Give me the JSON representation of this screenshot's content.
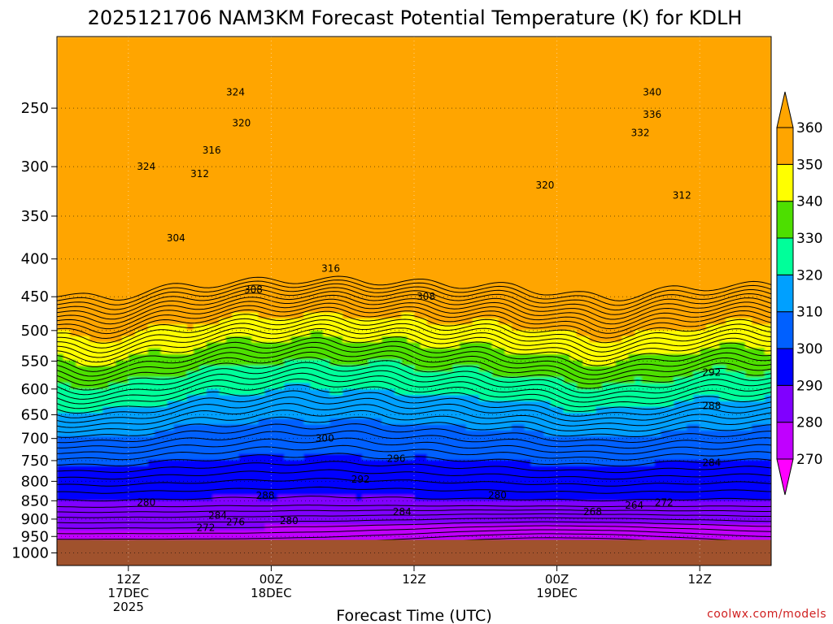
{
  "chart_data": {
    "type": "heatmap",
    "title": "2025121706 NAM3KM Forecast Potential Temperature (K) for KDLH",
    "xlabel": "Forecast Time (UTC)",
    "ylabel": "",
    "y_scale": "pressure (log)",
    "ylim": [
      1040,
      200
    ],
    "x_ticks": [
      {
        "value": "2025-12-17T12Z",
        "labels": [
          "12Z",
          "17DEC",
          "2025"
        ]
      },
      {
        "value": "2025-12-18T00Z",
        "labels": [
          "00Z",
          "18DEC"
        ]
      },
      {
        "value": "2025-12-18T12Z",
        "labels": [
          "12Z"
        ]
      },
      {
        "value": "2025-12-19T00Z",
        "labels": [
          "00Z",
          "19DEC"
        ]
      },
      {
        "value": "2025-12-19T12Z",
        "labels": [
          "12Z"
        ]
      }
    ],
    "xlim": [
      "2025-12-17T06Z",
      "2025-12-19T18Z"
    ],
    "y_ticks": [
      250,
      300,
      350,
      400,
      450,
      500,
      550,
      600,
      650,
      700,
      750,
      800,
      850,
      900,
      950,
      1000
    ],
    "grid": true,
    "colorbar": {
      "levels": [
        270,
        280,
        290,
        300,
        310,
        320,
        330,
        340,
        350,
        360
      ],
      "colors": [
        "#ff00ff",
        "#c000ff",
        "#8000ff",
        "#0000ff",
        "#0060ff",
        "#00a0ff",
        "#00ff9a",
        "#4ddf00",
        "#ffff00",
        "#ffa500"
      ],
      "extend": "both"
    },
    "contour_interval": 2,
    "contour_labels": [
      {
        "text": "324",
        "t": 15.0,
        "p": 238
      },
      {
        "text": "320",
        "t": 15.5,
        "p": 262
      },
      {
        "text": "316",
        "t": 13.0,
        "p": 285
      },
      {
        "text": "324",
        "t": 7.5,
        "p": 300
      },
      {
        "text": "312",
        "t": 12.0,
        "p": 307
      },
      {
        "text": "304",
        "t": 10.0,
        "p": 375
      },
      {
        "text": "316",
        "t": 23.0,
        "p": 412
      },
      {
        "text": "308",
        "t": 16.5,
        "p": 440
      },
      {
        "text": "308",
        "t": 31.0,
        "p": 450
      },
      {
        "text": "340",
        "t": 50.0,
        "p": 238
      },
      {
        "text": "336",
        "t": 50.0,
        "p": 255
      },
      {
        "text": "332",
        "t": 49.0,
        "p": 270
      },
      {
        "text": "320",
        "t": 41.0,
        "p": 318
      },
      {
        "text": "312",
        "t": 52.5,
        "p": 328
      },
      {
        "text": "292",
        "t": 55.0,
        "p": 570
      },
      {
        "text": "288",
        "t": 55.0,
        "p": 632
      },
      {
        "text": "284",
        "t": 55.0,
        "p": 755
      },
      {
        "text": "300",
        "t": 22.5,
        "p": 700
      },
      {
        "text": "296",
        "t": 28.5,
        "p": 745
      },
      {
        "text": "292",
        "t": 25.5,
        "p": 795
      },
      {
        "text": "288",
        "t": 17.5,
        "p": 836
      },
      {
        "text": "284",
        "t": 29.0,
        "p": 880
      },
      {
        "text": "280",
        "t": 37.0,
        "p": 835
      },
      {
        "text": "280",
        "t": 7.5,
        "p": 855
      },
      {
        "text": "284",
        "t": 13.5,
        "p": 890
      },
      {
        "text": "276",
        "t": 15.0,
        "p": 908
      },
      {
        "text": "272",
        "t": 12.5,
        "p": 925
      },
      {
        "text": "280",
        "t": 19.5,
        "p": 905
      },
      {
        "text": "268",
        "t": 45.0,
        "p": 880
      },
      {
        "text": "264",
        "t": 48.5,
        "p": 862
      },
      {
        "text": "272",
        "t": 51.0,
        "p": 855
      }
    ],
    "ground_color": "#a0522d",
    "surface_pressure": 960
  },
  "credit": "coolwx.com/models"
}
